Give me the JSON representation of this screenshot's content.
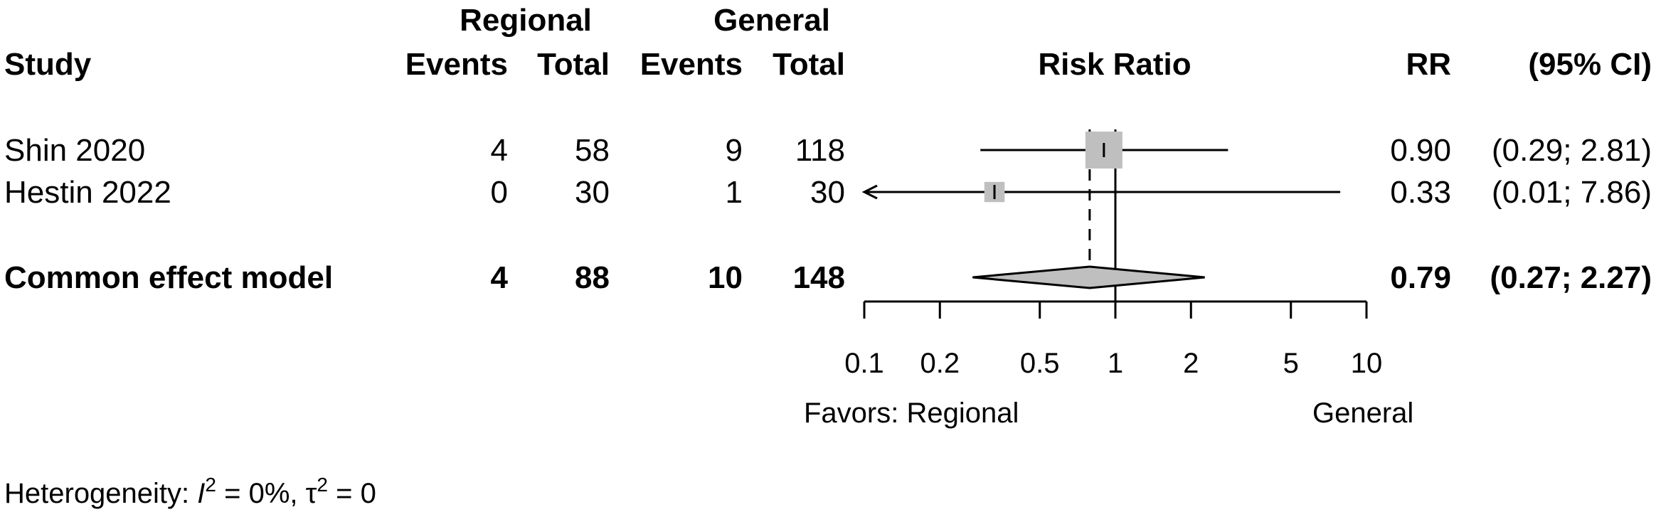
{
  "chart_data": {
    "type": "forest",
    "group_headers": {
      "experimental": "Regional",
      "control": "General"
    },
    "columns": {
      "study": "Study",
      "exp_events": "Events",
      "exp_total": "Total",
      "ctrl_events": "Events",
      "ctrl_total": "Total",
      "plot_title": "Risk Ratio",
      "rr": "RR",
      "ci": "(95% CI)"
    },
    "studies": [
      {
        "study": "Shin 2020",
        "exp_events": "4",
        "exp_total": "58",
        "ctrl_events": "9",
        "ctrl_total": "118",
        "rr": 0.9,
        "lower": 0.29,
        "upper": 2.81,
        "rr_text": "0.90",
        "ci_text": "(0.29; 2.81)",
        "weight": 1.0
      },
      {
        "study": "Hestin 2022",
        "exp_events": "0",
        "exp_total": "30",
        "ctrl_events": "1",
        "ctrl_total": "30",
        "rr": 0.33,
        "lower": 0.01,
        "upper": 7.86,
        "rr_text": "0.33",
        "ci_text": "(0.01; 7.86)",
        "weight": 0.3
      }
    ],
    "pooled": {
      "label": "Common effect model",
      "exp_events": "4",
      "exp_total": "88",
      "ctrl_events": "10",
      "ctrl_total": "148",
      "rr": 0.79,
      "lower": 0.27,
      "upper": 2.27,
      "rr_text": "0.79",
      "ci_text": "(0.27; 2.27)"
    },
    "x_axis": {
      "scale": "log",
      "range": [
        0.1,
        10
      ],
      "ticks": [
        0.1,
        0.2,
        0.5,
        1,
        2,
        5,
        10
      ],
      "tick_labels": [
        "0.1",
        "0.2",
        "0.5",
        "1",
        "2",
        "5",
        "10"
      ],
      "null_value": 1
    },
    "favors": {
      "left": "Favors: Regional",
      "right": "General"
    },
    "heterogeneity": {
      "prefix": "Heterogeneity: ",
      "i2_symbol": "I",
      "i2_value": " = 0%, ",
      "tau_symbol": "τ",
      "tau_value": " = 0"
    },
    "colors": {
      "square": "#bfbfbf",
      "diamond": "#bfbfbf",
      "line": "#000000"
    }
  }
}
